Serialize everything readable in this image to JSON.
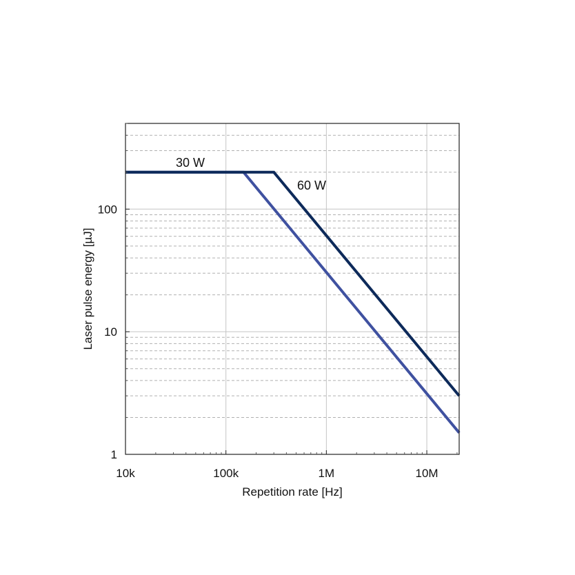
{
  "chart_data": {
    "type": "line",
    "xlabel": "Repetition rate [Hz]",
    "ylabel": "Laser pulse energy [µJ]",
    "x_scale": "log",
    "y_scale": "log",
    "xlim": [
      10000,
      21000000
    ],
    "ylim": [
      1,
      500
    ],
    "x_ticks": [
      {
        "value": 10000,
        "label": "10k"
      },
      {
        "value": 100000,
        "label": "100k"
      },
      {
        "value": 1000000,
        "label": "1M"
      },
      {
        "value": 10000000,
        "label": "10M"
      }
    ],
    "y_ticks": [
      {
        "value": 1,
        "label": "1"
      },
      {
        "value": 10,
        "label": "10"
      },
      {
        "value": 100,
        "label": "100"
      }
    ],
    "grid": true,
    "series": [
      {
        "name": "30 W",
        "color": "#3f51a0",
        "points": [
          {
            "x": 10000,
            "y": 200
          },
          {
            "x": 150000,
            "y": 200
          },
          {
            "x": 21000000,
            "y": 1.5
          }
        ]
      },
      {
        "name": "60 W",
        "color": "#0d2a5a",
        "points": [
          {
            "x": 10000,
            "y": 200
          },
          {
            "x": 300000,
            "y": 200
          },
          {
            "x": 21000000,
            "y": 3
          }
        ]
      }
    ]
  }
}
